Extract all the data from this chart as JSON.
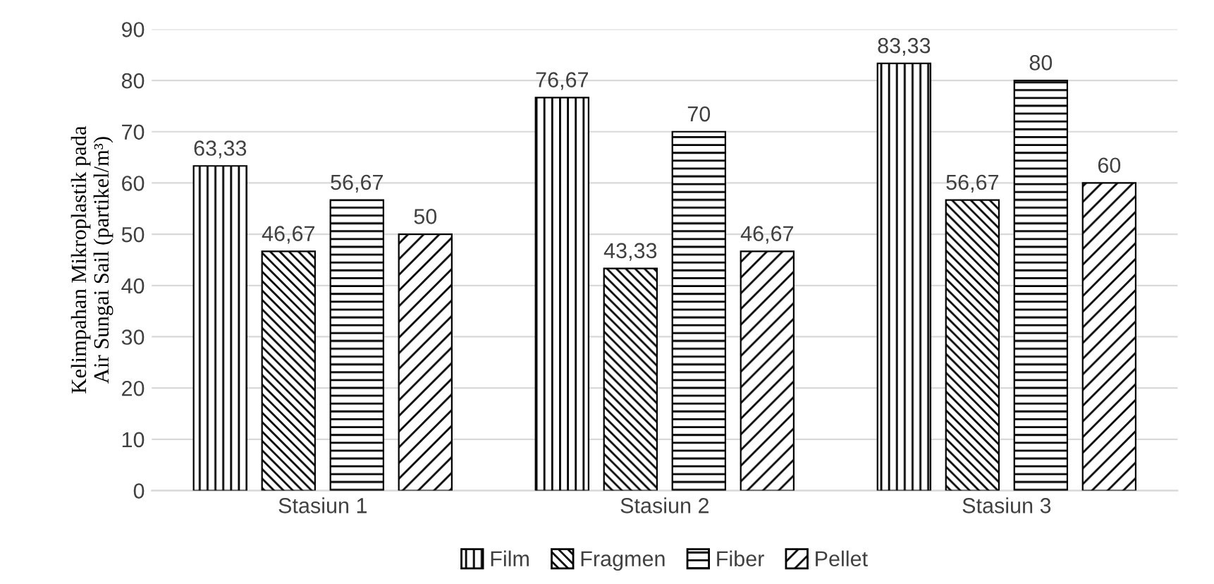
{
  "chart_data": {
    "type": "bar",
    "ylabel": "Kelimpahan Mikroplastik pada Air Sungai Sail (partikel/m³)",
    "categories": [
      "Stasiun 1",
      "Stasiun 2",
      "Stasiun 3"
    ],
    "ylim": [
      0,
      90
    ],
    "yticks": [
      0,
      10,
      20,
      30,
      40,
      50,
      60,
      70,
      80,
      90
    ],
    "grid": "y",
    "legend": "bottom",
    "series": [
      {
        "name": "Film",
        "color": "#000000",
        "values": [
          63.33,
          76.67,
          83.33
        ],
        "value_labels": [
          "63,33",
          "76,67",
          "83,33"
        ]
      },
      {
        "name": "Fragmen",
        "color": "#000000",
        "values": [
          46.67,
          43.33,
          56.67
        ],
        "value_labels": [
          "46,67",
          "43,33",
          "56,67"
        ]
      },
      {
        "name": "Fiber",
        "color": "#000000",
        "values": [
          56.67,
          70,
          80
        ],
        "value_labels": [
          "56,67",
          "70",
          "80"
        ]
      },
      {
        "name": "Pellet",
        "color": "#000000",
        "values": [
          50,
          46.67,
          60
        ],
        "value_labels": [
          "50",
          "46,67",
          "60"
        ]
      }
    ]
  }
}
